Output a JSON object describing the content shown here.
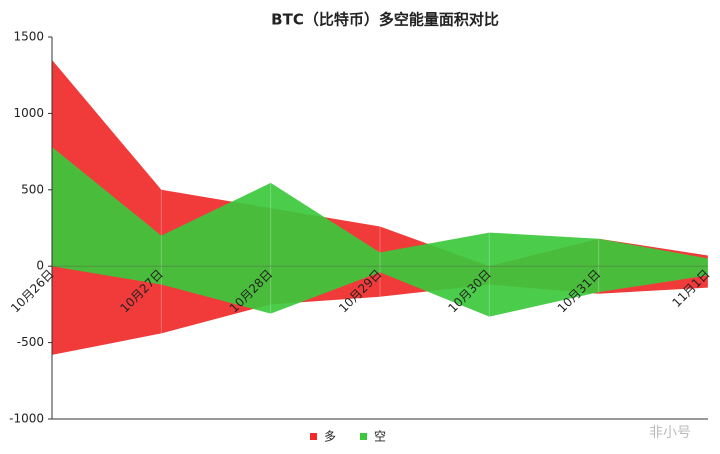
{
  "chart_data": {
    "type": "band-area",
    "title": "BTC（比特币）多空能量面积对比",
    "categories": [
      "10月26日",
      "10月27日",
      "10月28日",
      "10月29日",
      "10月30日",
      "10月31日",
      "11月1日"
    ],
    "series": [
      {
        "name": "多",
        "color": "#f02a2a",
        "upper": [
          1350,
          500,
          380,
          260,
          0,
          180,
          70
        ],
        "lower": [
          -580,
          -440,
          -250,
          -200,
          -120,
          -180,
          -140
        ]
      },
      {
        "name": "空",
        "color": "#3cc83c",
        "upper": [
          780,
          200,
          545,
          90,
          220,
          180,
          50
        ],
        "lower": [
          0,
          -120,
          -310,
          -40,
          -330,
          -170,
          -60
        ]
      }
    ],
    "ylim": [
      -1000,
      1500
    ],
    "yticks": [
      -1000,
      -500,
      0,
      500,
      1000,
      1500
    ],
    "grid": true,
    "legend": "bottom",
    "watermark": "非小号"
  }
}
